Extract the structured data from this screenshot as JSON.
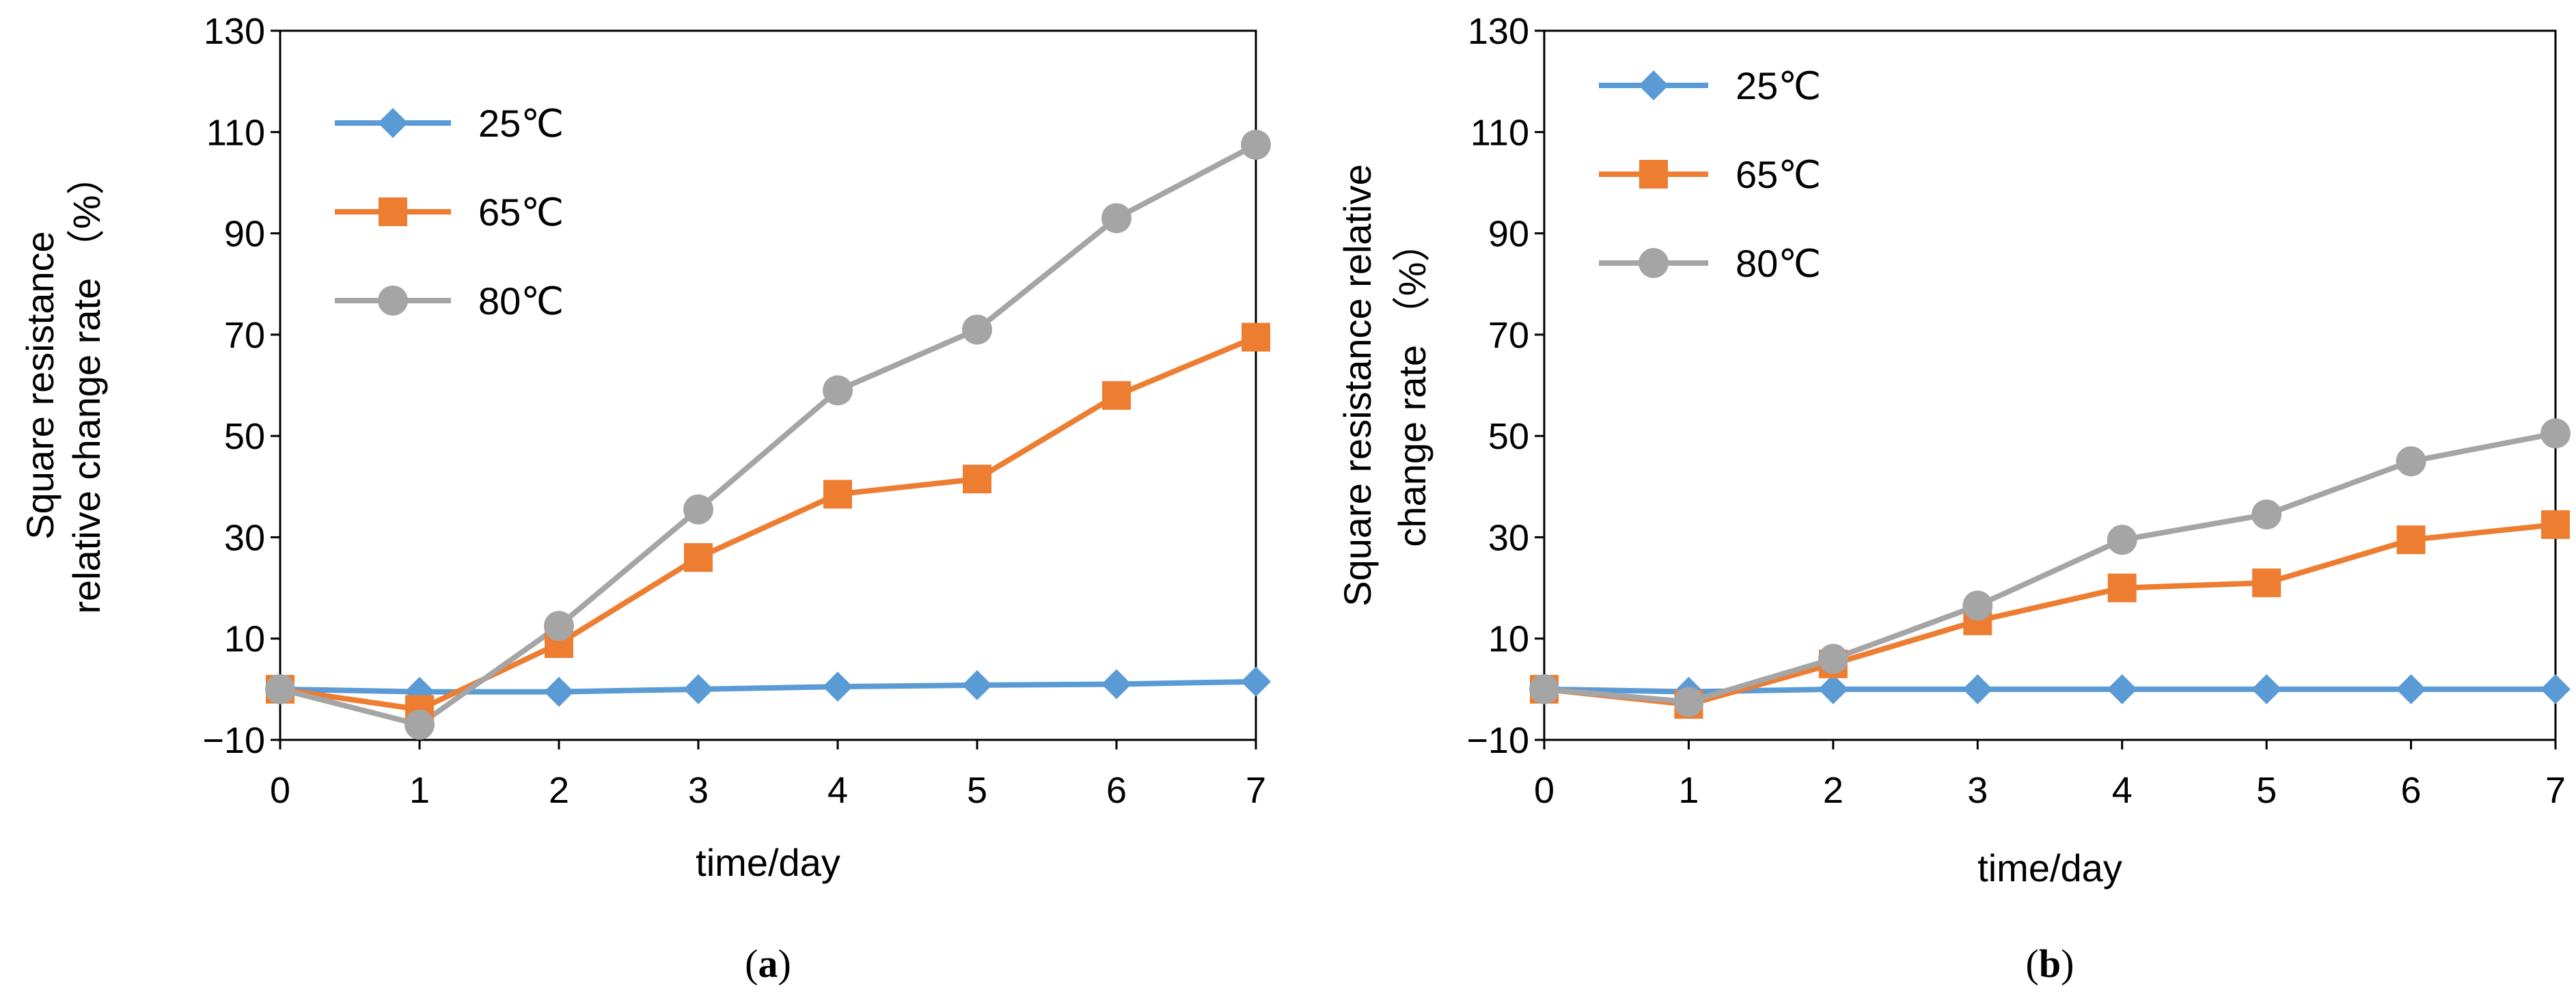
{
  "chart_data": [
    {
      "type": "line",
      "panel_label": "a",
      "xlabel": "time/day",
      "ylabel": [
        "Square resistance",
        "relative change rate （%）"
      ],
      "x": [
        0,
        1,
        2,
        3,
        4,
        5,
        6,
        7
      ],
      "xlim": [
        0,
        7
      ],
      "ylim": [
        -10,
        130
      ],
      "yticks": [
        -10,
        10,
        30,
        50,
        70,
        90,
        110,
        130
      ],
      "ytick_labels": [
        "−10",
        "10",
        "30",
        "50",
        "70",
        "90",
        "110",
        "130"
      ],
      "grid": false,
      "legend_position": "top-left",
      "series": [
        {
          "name": "25℃",
          "color": "#5B9BD5",
          "marker": "diamond",
          "values": [
            0,
            -0.5,
            -0.5,
            0,
            0.5,
            0.8,
            1.0,
            1.5
          ]
        },
        {
          "name": "65℃",
          "color": "#ED7D31",
          "marker": "square",
          "values": [
            0,
            -4,
            9,
            26,
            38.5,
            41.5,
            58,
            69.5
          ]
        },
        {
          "name": "80℃",
          "color": "#A5A5A5",
          "marker": "circle",
          "values": [
            0,
            -7,
            12.5,
            35.5,
            59,
            71,
            93,
            107.5
          ]
        }
      ]
    },
    {
      "type": "line",
      "panel_label": "b",
      "xlabel": "time/day",
      "ylabel": [
        "Square resistance relative",
        "change rate （%）"
      ],
      "x": [
        0,
        1,
        2,
        3,
        4,
        5,
        6,
        7
      ],
      "xlim": [
        0,
        7
      ],
      "ylim": [
        -10,
        130
      ],
      "yticks": [
        -10,
        10,
        30,
        50,
        70,
        90,
        110,
        130
      ],
      "ytick_labels": [
        "−10",
        "10",
        "30",
        "50",
        "70",
        "90",
        "110",
        "130"
      ],
      "grid": false,
      "legend_position": "top-left",
      "series": [
        {
          "name": "25℃",
          "color": "#5B9BD5",
          "marker": "diamond",
          "values": [
            0,
            -0.5,
            0,
            0,
            0,
            0,
            0,
            0
          ]
        },
        {
          "name": "65℃",
          "color": "#ED7D31",
          "marker": "square",
          "values": [
            0,
            -3,
            5,
            13.5,
            20,
            21,
            29.5,
            32.5
          ]
        },
        {
          "name": "80℃",
          "color": "#A5A5A5",
          "marker": "circle",
          "values": [
            0,
            -2.5,
            6,
            16.5,
            29.5,
            34.5,
            45,
            50.5
          ]
        }
      ]
    }
  ]
}
